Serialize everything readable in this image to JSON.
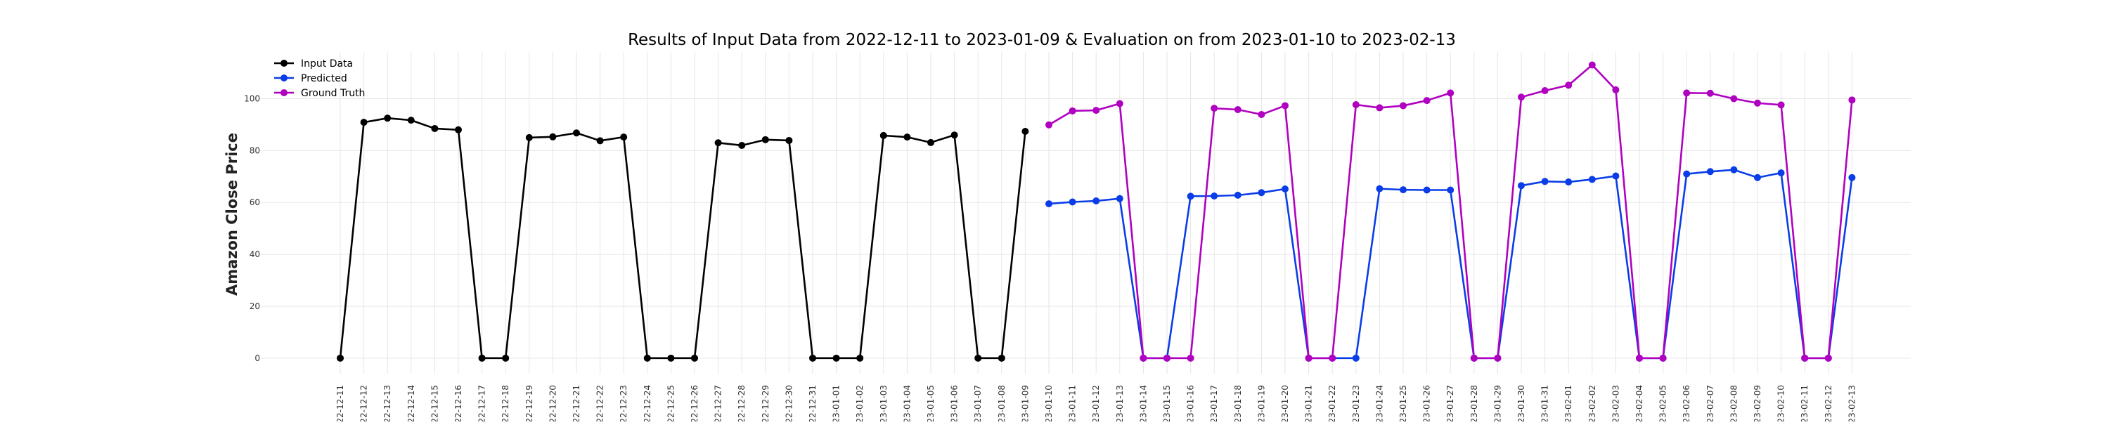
{
  "chart_data": {
    "type": "line",
    "title": "Results of Input Data from 2022-12-11 to 2023-01-09 & Evaluation on from 2023-01-10 to 2023-02-13",
    "xlabel": "",
    "ylabel": "Amazon Close Price",
    "ylim": [
      -6,
      118
    ],
    "yticks": [
      0,
      20,
      40,
      60,
      80,
      100
    ],
    "grid": true,
    "legend_position": "top-left",
    "x": [
      "2022-12-11",
      "2022-12-12",
      "2022-12-13",
      "2022-12-14",
      "2022-12-15",
      "2022-12-16",
      "2022-12-17",
      "2022-12-18",
      "2022-12-19",
      "2022-12-20",
      "2022-12-21",
      "2022-12-22",
      "2022-12-23",
      "2022-12-24",
      "2022-12-25",
      "2022-12-26",
      "2022-12-27",
      "2022-12-28",
      "2022-12-29",
      "2022-12-30",
      "2022-12-31",
      "2023-01-01",
      "2023-01-02",
      "2023-01-03",
      "2023-01-04",
      "2023-01-05",
      "2023-01-06",
      "2023-01-07",
      "2023-01-08",
      "2023-01-09",
      "2023-01-10",
      "2023-01-11",
      "2023-01-12",
      "2023-01-13",
      "2023-01-14",
      "2023-01-15",
      "2023-01-16",
      "2023-01-17",
      "2023-01-18",
      "2023-01-19",
      "2023-01-20",
      "2023-01-21",
      "2023-01-22",
      "2023-01-23",
      "2023-01-24",
      "2023-01-25",
      "2023-01-26",
      "2023-01-27",
      "2023-01-28",
      "2023-01-29",
      "2023-01-30",
      "2023-01-31",
      "2023-02-01",
      "2023-02-02",
      "2023-02-03",
      "2023-02-04",
      "2023-02-05",
      "2023-02-06",
      "2023-02-07",
      "2023-02-08",
      "2023-02-09",
      "2023-02-10",
      "2023-02-11",
      "2023-02-12",
      "2023-02-13"
    ],
    "xtick_labels": [
      "-22-12-11",
      "-22-12-12",
      "-22-12-13",
      "-22-12-14",
      "-22-12-15",
      "-22-12-16",
      "-22-12-17",
      "-22-12-18",
      "-22-12-19",
      "-22-12-20",
      "-22-12-21",
      "-22-12-22",
      "-22-12-23",
      "-22-12-24",
      "-22-12-25",
      "-22-12-26",
      "-22-12-27",
      "-22-12-28",
      "-22-12-29",
      "-22-12-30",
      "-22-12-31",
      "-23-01-01",
      "-23-01-02",
      "-23-01-03",
      "-23-01-04",
      "-23-01-05",
      "-23-01-06",
      "-23-01-07",
      "-23-01-08",
      "-23-01-09",
      "-23-01-10",
      "-23-01-11",
      "-23-01-12",
      "-23-01-13",
      "-23-01-14",
      "-23-01-15",
      "-23-01-16",
      "-23-01-17",
      "-23-01-18",
      "-23-01-19",
      "-23-01-20",
      "-23-01-21",
      "-23-01-22",
      "-23-01-23",
      "-23-01-24",
      "-23-01-25",
      "-23-01-26",
      "-23-01-27",
      "-23-01-28",
      "-23-01-29",
      "-23-01-30",
      "-23-01-31",
      "-23-02-01",
      "-23-02-02",
      "-23-02-03",
      "-23-02-04",
      "-23-02-05",
      "-23-02-06",
      "-23-02-07",
      "-23-02-08",
      "-23-02-09",
      "-23-02-10",
      "-23-02-11",
      "-23-02-12",
      "-23-02-13"
    ],
    "series": [
      {
        "name": "Input Data",
        "color": "#000000",
        "x": [
          "2022-12-11",
          "2022-12-12",
          "2022-12-13",
          "2022-12-14",
          "2022-12-15",
          "2022-12-16",
          "2022-12-17",
          "2022-12-18",
          "2022-12-19",
          "2022-12-20",
          "2022-12-21",
          "2022-12-22",
          "2022-12-23",
          "2022-12-24",
          "2022-12-25",
          "2022-12-26",
          "2022-12-27",
          "2022-12-28",
          "2022-12-29",
          "2022-12-30",
          "2022-12-31",
          "2023-01-01",
          "2023-01-02",
          "2023-01-03",
          "2023-01-04",
          "2023-01-05",
          "2023-01-06",
          "2023-01-07",
          "2023-01-08",
          "2023-01-09"
        ],
        "values": [
          0,
          90.9,
          92.5,
          91.7,
          88.5,
          88.0,
          0,
          0,
          85.0,
          85.3,
          86.8,
          83.8,
          85.2,
          0,
          0,
          0,
          83.0,
          82.0,
          84.2,
          83.9,
          0,
          0,
          0,
          85.8,
          85.2,
          83.1,
          86.0,
          0,
          0,
          87.4
        ]
      },
      {
        "name": "Predicted",
        "color": "#0a3de8",
        "x": [
          "2023-01-10",
          "2023-01-11",
          "2023-01-12",
          "2023-01-13",
          "2023-01-14",
          "2023-01-15",
          "2023-01-16",
          "2023-01-17",
          "2023-01-18",
          "2023-01-19",
          "2023-01-20",
          "2023-01-21",
          "2023-01-22",
          "2023-01-23",
          "2023-01-24",
          "2023-01-25",
          "2023-01-26",
          "2023-01-27",
          "2023-01-28",
          "2023-01-29",
          "2023-01-30",
          "2023-01-31",
          "2023-02-01",
          "2023-02-02",
          "2023-02-03",
          "2023-02-04",
          "2023-02-05",
          "2023-02-06",
          "2023-02-07",
          "2023-02-08",
          "2023-02-09",
          "2023-02-10",
          "2023-02-11",
          "2023-02-12",
          "2023-02-13"
        ],
        "values": [
          59.5,
          60.2,
          60.6,
          61.5,
          0,
          0,
          62.4,
          62.5,
          62.8,
          63.8,
          65.2,
          0,
          0,
          0,
          65.3,
          64.9,
          64.8,
          64.8,
          0,
          0,
          66.5,
          68.1,
          67.9,
          68.9,
          70.2,
          0,
          0,
          71.0,
          71.9,
          72.6,
          69.6,
          71.4,
          0,
          0,
          69.6
        ]
      },
      {
        "name": "Ground Truth",
        "color": "#b000c0",
        "x": [
          "2023-01-10",
          "2023-01-11",
          "2023-01-12",
          "2023-01-13",
          "2023-01-14",
          "2023-01-15",
          "2023-01-16",
          "2023-01-17",
          "2023-01-18",
          "2023-01-19",
          "2023-01-20",
          "2023-01-21",
          "2023-01-22",
          "2023-01-23",
          "2023-01-24",
          "2023-01-25",
          "2023-01-26",
          "2023-01-27",
          "2023-01-28",
          "2023-01-29",
          "2023-01-30",
          "2023-01-31",
          "2023-02-01",
          "2023-02-02",
          "2023-02-03",
          "2023-02-04",
          "2023-02-05",
          "2023-02-06",
          "2023-02-07",
          "2023-02-08",
          "2023-02-09",
          "2023-02-10",
          "2023-02-11",
          "2023-02-12",
          "2023-02-13"
        ],
        "values": [
          89.9,
          95.3,
          95.5,
          98.1,
          0,
          0,
          0,
          96.3,
          95.8,
          93.9,
          97.3,
          0,
          0,
          97.7,
          96.5,
          97.3,
          99.3,
          102.2,
          0,
          0,
          100.6,
          103.1,
          105.2,
          113.0,
          103.4,
          0,
          0,
          102.2,
          102.1,
          100.0,
          98.3,
          97.6,
          0,
          0,
          99.5
        ]
      }
    ]
  }
}
